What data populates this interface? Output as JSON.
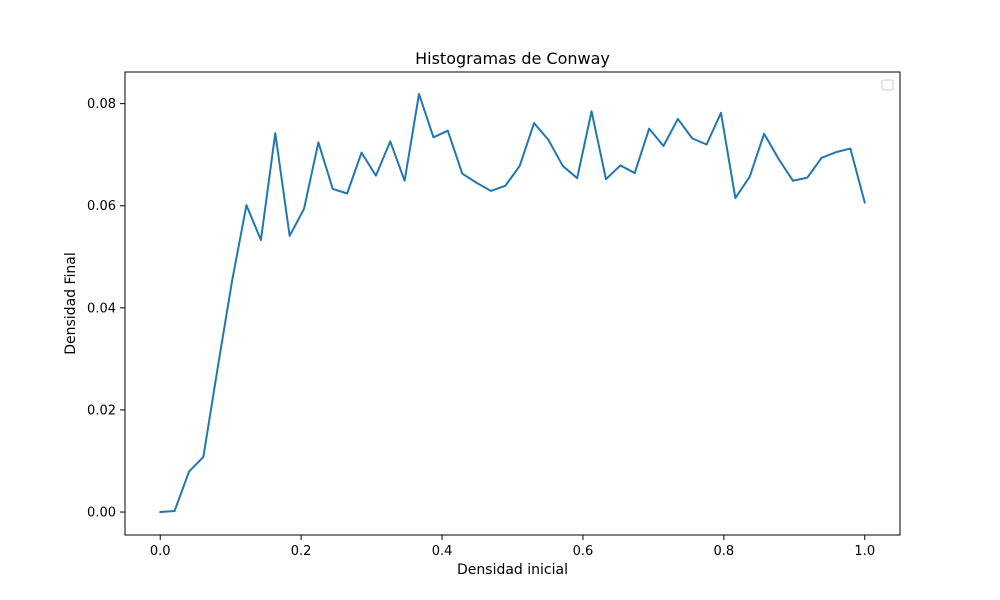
{
  "chart_data": {
    "type": "line",
    "title": "Histogramas de Conway",
    "xlabel": "Densidad inicial",
    "ylabel": "Densidad Final",
    "xlim": [
      -0.05,
      1.05
    ],
    "ylim": [
      -0.0045,
      0.0862
    ],
    "xticks": [
      0.0,
      0.2,
      0.4,
      0.6,
      0.8,
      1.0
    ],
    "xtick_labels": [
      "0.0",
      "0.2",
      "0.4",
      "0.6",
      "0.8",
      "1.0"
    ],
    "yticks": [
      0.0,
      0.02,
      0.04,
      0.06,
      0.08
    ],
    "ytick_labels": [
      "0.00",
      "0.02",
      "0.04",
      "0.06",
      "0.08"
    ],
    "grid": false,
    "legend": {
      "placement": "top-right",
      "entries": []
    },
    "series": [
      {
        "color": "#1f77b4",
        "x": [
          0.0,
          0.0204,
          0.0408,
          0.0612,
          0.0816,
          0.102,
          0.1224,
          0.1429,
          0.1633,
          0.1837,
          0.2041,
          0.2245,
          0.2449,
          0.2653,
          0.2857,
          0.3061,
          0.3265,
          0.3469,
          0.3673,
          0.3878,
          0.4082,
          0.4286,
          0.449,
          0.4694,
          0.4898,
          0.5102,
          0.5306,
          0.551,
          0.5714,
          0.5918,
          0.6122,
          0.6327,
          0.6531,
          0.6735,
          0.6939,
          0.7143,
          0.7347,
          0.7551,
          0.7755,
          0.7959,
          0.8163,
          0.8367,
          0.8571,
          0.8776,
          0.898,
          0.9184,
          0.9388,
          0.9592,
          0.9796,
          1.0
        ],
        "y": [
          0.0,
          0.0002,
          0.0079,
          0.0108,
          0.0283,
          0.0453,
          0.0601,
          0.0533,
          0.0742,
          0.0541,
          0.0594,
          0.0724,
          0.0633,
          0.0624,
          0.0704,
          0.0659,
          0.0726,
          0.0649,
          0.0819,
          0.0734,
          0.0747,
          0.0663,
          0.0645,
          0.0629,
          0.0639,
          0.0678,
          0.0762,
          0.0729,
          0.0678,
          0.0654,
          0.0785,
          0.0652,
          0.0679,
          0.0664,
          0.0751,
          0.0717,
          0.077,
          0.0732,
          0.072,
          0.0782,
          0.0615,
          0.0657,
          0.0741,
          0.0692,
          0.0649,
          0.0655,
          0.0694,
          0.0705,
          0.0712,
          0.0606
        ]
      }
    ]
  }
}
